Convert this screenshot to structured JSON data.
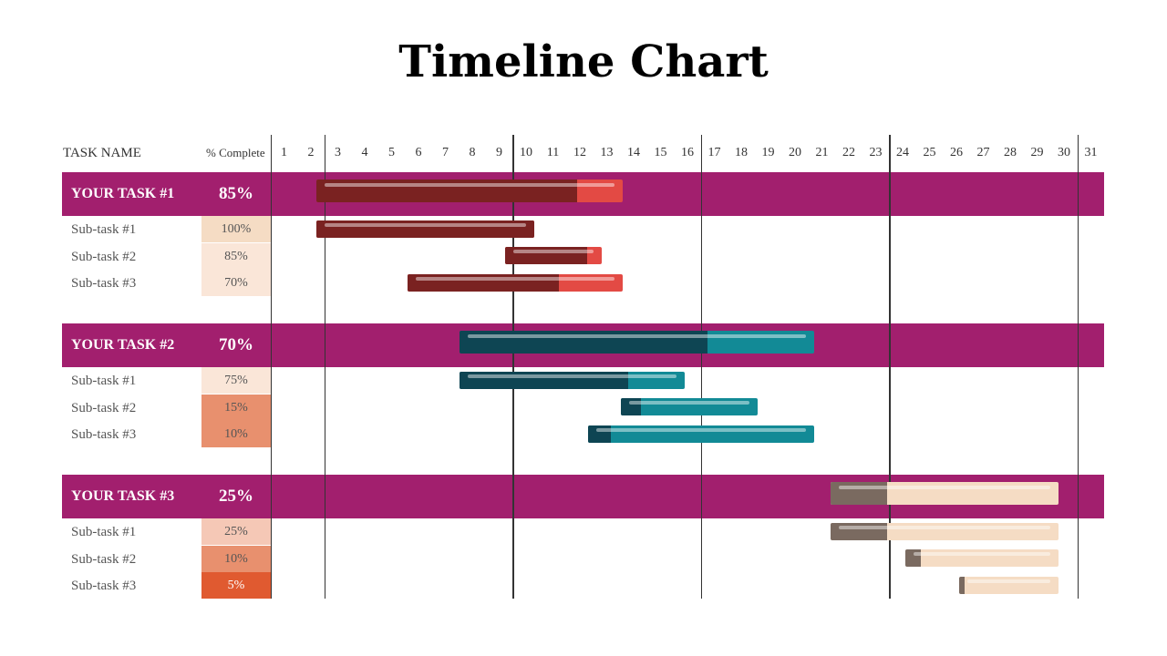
{
  "title": "Timeline Chart",
  "header": {
    "task_name": "TASK NAME",
    "complete": "% Complete"
  },
  "chart_data": {
    "type": "gantt",
    "days": [
      1,
      2,
      3,
      4,
      5,
      6,
      7,
      8,
      9,
      10,
      11,
      12,
      13,
      14,
      15,
      16,
      17,
      18,
      19,
      20,
      21,
      22,
      23,
      24,
      25,
      26,
      27,
      28,
      29,
      30,
      31
    ],
    "tasks": [
      {
        "name": "YOUR TASK #1",
        "percent": 85,
        "percent_label": "85%",
        "start": 2.7,
        "end": 14.1,
        "colors": {
          "band": "#a21f6e",
          "done": "#7a2221",
          "remain": "#e34a44"
        },
        "subtasks": [
          {
            "name": "Sub-task #1",
            "percent": 100,
            "percent_label": "100%",
            "start": 2.7,
            "end": 10.8,
            "cell_color": "#f5dcc4"
          },
          {
            "name": "Sub-task #2",
            "percent": 85,
            "percent_label": "85%",
            "start": 9.7,
            "end": 13.3,
            "cell_color": "#fae6d8"
          },
          {
            "name": "Sub-task #3",
            "percent": 70,
            "percent_label": "70%",
            "start": 6.1,
            "end": 14.1,
            "cell_color": "#fae6d8"
          }
        ]
      },
      {
        "name": "YOUR TASK #2",
        "percent": 70,
        "percent_label": "70%",
        "start": 8.0,
        "end": 21.2,
        "colors": {
          "band": "#a21f6e",
          "done": "#0e4553",
          "remain": "#128a96"
        },
        "subtasks": [
          {
            "name": "Sub-task #1",
            "percent": 75,
            "percent_label": "75%",
            "start": 8.0,
            "end": 16.4,
            "cell_color": "#fae6d8"
          },
          {
            "name": "Sub-task #2",
            "percent": 15,
            "percent_label": "15%",
            "start": 14.0,
            "end": 19.1,
            "cell_color": "#e8906e"
          },
          {
            "name": "Sub-task #3",
            "percent": 10,
            "percent_label": "10%",
            "start": 12.8,
            "end": 21.2,
            "cell_color": "#e8906e"
          }
        ]
      },
      {
        "name": "YOUR TASK #3",
        "percent": 25,
        "percent_label": "25%",
        "start": 21.8,
        "end": 30.3,
        "colors": {
          "band": "#a21f6e",
          "done": "#7a6a60",
          "remain": "#f5dcc4"
        },
        "subtasks": [
          {
            "name": "Sub-task #1",
            "percent": 25,
            "percent_label": "25%",
            "start": 21.8,
            "end": 30.3,
            "cell_color": "#f5c8b6"
          },
          {
            "name": "Sub-task #2",
            "percent": 10,
            "percent_label": "10%",
            "start": 24.6,
            "end": 30.3,
            "cell_color": "#e8906e"
          },
          {
            "name": "Sub-task #3",
            "percent": 5,
            "percent_label": "5%",
            "start": 26.6,
            "end": 30.3,
            "cell_color": "#e05a30"
          }
        ]
      }
    ]
  }
}
